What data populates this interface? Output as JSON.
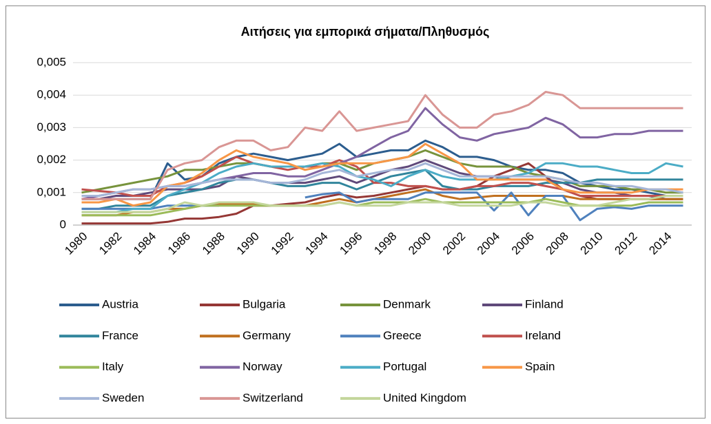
{
  "chart_data": {
    "type": "line",
    "title": "Αιτήσεις για εμπορικά σήματα/Πληθυσμός",
    "categories": [
      "1980",
      null,
      "1982",
      null,
      "1984",
      null,
      "1986",
      null,
      "1988",
      null,
      "1990",
      null,
      "1992",
      null,
      "1994",
      null,
      "1996",
      null,
      "1998",
      null,
      "2000",
      null,
      "2002",
      null,
      "2004",
      null,
      "2006",
      null,
      "2008",
      null,
      "2010",
      null,
      "2012",
      null,
      "2014",
      null
    ],
    "ylim": [
      0,
      0.005
    ],
    "yticks": [
      0,
      {
        "value": 0.001,
        "label": "0,001"
      },
      {
        "value": 0.002,
        "label": "0,002"
      },
      {
        "value": 0.003,
        "label": "0,003"
      },
      {
        "value": 0.004,
        "label": "0,004"
      },
      {
        "value": 0.005,
        "label": "0,005"
      }
    ],
    "grid": true,
    "legend": "bottom",
    "series": [
      {
        "name": "Austria",
        "color": "#2c5d8e",
        "values": [
          0.0008,
          0.0008,
          0.0008,
          0.0008,
          0.0008,
          0.0019,
          0.0014,
          0.0015,
          0.0019,
          0.0021,
          0.0022,
          0.0021,
          0.002,
          0.0021,
          0.0022,
          0.0025,
          0.0021,
          0.0022,
          0.0023,
          0.0023,
          0.0026,
          0.0024,
          0.0021,
          0.0021,
          0.002,
          0.0018,
          0.0017,
          0.0017,
          0.0016,
          0.0013,
          0.0012,
          0.0011,
          0.0011,
          0.001,
          0.0009,
          0.0009
        ]
      },
      {
        "name": "Bulgaria",
        "color": "#953735",
        "values": [
          5e-05,
          5e-05,
          5e-05,
          5e-05,
          5e-05,
          0.0001,
          0.0002,
          0.0002,
          0.00025,
          0.00035,
          0.0006,
          0.0006,
          0.00065,
          0.0007,
          0.00085,
          0.00095,
          0.00085,
          0.0009,
          0.001,
          0.0011,
          0.0012,
          0.0011,
          0.0011,
          0.0012,
          0.0015,
          0.0017,
          0.0019,
          0.0015,
          0.0011,
          0.0009,
          0.0008,
          0.0008,
          0.0008,
          0.0008,
          0.0008,
          0.0008
        ]
      },
      {
        "name": "Denmark",
        "color": "#77933c",
        "values": [
          0.001,
          0.0011,
          0.0012,
          0.0013,
          0.0014,
          0.0015,
          0.0017,
          0.0017,
          0.0018,
          0.0019,
          0.0019,
          0.0018,
          0.0018,
          0.0018,
          0.0019,
          0.0019,
          0.0017,
          0.0019,
          0.002,
          0.0021,
          0.0023,
          0.0021,
          0.0019,
          0.0018,
          0.0018,
          0.0018,
          0.0016,
          0.0015,
          0.0014,
          0.0012,
          0.0012,
          0.0012,
          0.0011,
          0.0011,
          0.001,
          0.001
        ]
      },
      {
        "name": "Finland",
        "color": "#5f497a",
        "values": [
          0.0008,
          0.0008,
          0.0009,
          0.0009,
          0.001,
          0.0011,
          0.0011,
          0.0011,
          0.0012,
          0.0015,
          0.0014,
          0.0013,
          0.0013,
          0.0013,
          0.0014,
          0.0015,
          0.0013,
          0.0015,
          0.0017,
          0.0018,
          0.002,
          0.0018,
          0.0016,
          0.0015,
          0.0015,
          0.0014,
          0.0014,
          0.0014,
          0.0013,
          0.0011,
          0.001,
          0.001,
          0.0009,
          0.0009,
          0.0008,
          0.0008
        ]
      },
      {
        "name": "France",
        "color": "#31859c",
        "values": [
          0.0005,
          0.0005,
          0.0006,
          0.0006,
          0.0006,
          0.0009,
          0.001,
          0.0011,
          0.0013,
          0.0014,
          0.0014,
          0.0013,
          0.0012,
          0.0012,
          0.0013,
          0.0013,
          0.0011,
          0.0013,
          0.0015,
          0.0016,
          0.0017,
          0.0012,
          0.0011,
          0.0011,
          0.0012,
          0.0012,
          0.0012,
          0.0013,
          0.0013,
          0.0013,
          0.0014,
          0.0014,
          0.0014,
          0.0014,
          0.0014,
          0.0014
        ]
      },
      {
        "name": "Germany",
        "color": "#c0701f",
        "values": [
          0.0003,
          0.0003,
          0.0003,
          0.0004,
          0.0004,
          0.0005,
          0.0005,
          0.0006,
          0.00065,
          0.00065,
          0.00065,
          0.0006,
          0.0006,
          0.0006,
          0.0007,
          0.0008,
          0.0007,
          0.0008,
          0.0009,
          0.001,
          0.0011,
          0.0009,
          0.0008,
          0.00085,
          0.0009,
          0.0009,
          0.0009,
          0.0009,
          0.0009,
          0.0008,
          0.0008,
          0.0008,
          0.0008,
          0.0008,
          0.0008,
          0.0008
        ]
      },
      {
        "name": "Greece",
        "color": "#4f81bd",
        "values": [
          0.0005,
          0.0005,
          0.0005,
          0.0005,
          0.0005,
          0.0006,
          0.0006,
          0.0006,
          0.0006,
          null,
          null,
          null,
          null,
          0.00085,
          0.00095,
          0.001,
          0.0007,
          0.0008,
          0.0008,
          0.0008,
          0.001,
          0.001,
          0.001,
          0.001,
          0.00045,
          0.001,
          0.0003,
          0.0009,
          0.0009,
          0.00015,
          0.0005,
          0.00055,
          0.0005,
          0.0006,
          0.0006,
          0.0006
        ]
      },
      {
        "name": "Ireland",
        "color": "#c0504d",
        "values": [
          0.0011,
          0.00105,
          0.001,
          0.0009,
          0.0009,
          0.0012,
          0.0013,
          0.0015,
          0.0018,
          0.0021,
          0.0019,
          0.0018,
          0.0017,
          0.0018,
          0.0018,
          0.002,
          0.0018,
          0.0013,
          0.0013,
          0.0012,
          0.0012,
          0.0011,
          0.0011,
          0.0012,
          0.0012,
          0.0013,
          0.0013,
          0.0012,
          0.0011,
          0.0009,
          0.0009,
          0.0009,
          0.0009,
          0.0009,
          0.0009,
          0.0009
        ]
      },
      {
        "name": "Italy",
        "color": "#9bbb59",
        "values": [
          0.0003,
          0.0003,
          0.0003,
          0.0003,
          0.0003,
          0.0004,
          0.0005,
          0.0006,
          0.0006,
          0.0006,
          0.0006,
          0.0006,
          0.0006,
          0.0006,
          0.0006,
          0.0007,
          0.0006,
          0.0007,
          0.0007,
          0.0007,
          0.0008,
          0.0007,
          0.0007,
          0.0007,
          0.0007,
          0.0007,
          0.0007,
          0.0008,
          0.0007,
          0.0006,
          0.0006,
          0.0006,
          0.0006,
          0.0007,
          0.0007,
          0.0007
        ]
      },
      {
        "name": "Norway",
        "color": "#8064a2",
        "values": [
          0.0008,
          0.0009,
          0.001,
          0.0011,
          0.0011,
          0.0012,
          0.0012,
          0.0013,
          0.0014,
          0.0015,
          0.0016,
          0.0016,
          0.0015,
          0.0015,
          0.0017,
          0.0019,
          0.0021,
          0.0024,
          0.0027,
          0.0029,
          0.0036,
          0.0031,
          0.0027,
          0.0026,
          0.0028,
          0.0029,
          0.003,
          0.0033,
          0.0031,
          0.0027,
          0.0027,
          0.0028,
          0.0028,
          0.0029,
          0.0029,
          0.0029
        ]
      },
      {
        "name": "Portugal",
        "color": "#4bacc6",
        "values": [
          0.0004,
          0.0004,
          0.0004,
          0.0005,
          0.0005,
          0.0009,
          0.0011,
          0.0013,
          0.0016,
          0.0018,
          0.0019,
          0.0018,
          0.0018,
          0.0018,
          0.0019,
          0.0018,
          0.0015,
          0.0014,
          0.0012,
          0.0015,
          0.0017,
          0.0015,
          0.0014,
          0.0014,
          0.0014,
          0.0015,
          0.0016,
          0.0019,
          0.0019,
          0.0018,
          0.0018,
          0.0017,
          0.0016,
          0.0016,
          0.0019,
          0.0018
        ]
      },
      {
        "name": "Spain",
        "color": "#f79646",
        "values": [
          0.0007,
          0.0007,
          0.0008,
          0.0006,
          0.0007,
          0.0012,
          0.0013,
          0.0016,
          0.002,
          0.0023,
          0.0021,
          0.002,
          0.0019,
          0.0017,
          0.0018,
          0.0019,
          0.0019,
          0.0019,
          0.002,
          0.0021,
          0.0025,
          0.0022,
          0.0019,
          0.0014,
          0.0014,
          0.0014,
          0.0014,
          0.0014,
          0.0011,
          0.001,
          0.001,
          0.001,
          0.001,
          0.0011,
          0.0011,
          0.0011
        ]
      },
      {
        "name": "Sweden",
        "color": "#a5b6d8",
        "values": [
          0.0009,
          0.0009,
          0.001,
          0.0011,
          0.0011,
          0.0012,
          0.0012,
          0.0013,
          0.0014,
          0.0014,
          0.0014,
          0.0013,
          0.0013,
          0.0014,
          0.0016,
          0.0017,
          0.0015,
          0.0016,
          0.0017,
          0.0017,
          0.0019,
          0.0017,
          0.0015,
          0.0015,
          0.0015,
          0.0015,
          0.0015,
          0.0015,
          0.0014,
          0.0013,
          0.0013,
          0.0012,
          0.0012,
          0.0011,
          0.0011,
          0.001
        ]
      },
      {
        "name": "Switzerland",
        "color": "#d99694",
        "values": [
          0.0008,
          0.0008,
          0.0008,
          0.0008,
          0.0008,
          0.0017,
          0.0019,
          0.002,
          0.0024,
          0.0026,
          0.0026,
          0.0023,
          0.0024,
          0.003,
          0.0029,
          0.0035,
          0.0029,
          0.003,
          0.0031,
          0.0032,
          0.004,
          0.0034,
          0.003,
          0.003,
          0.0034,
          0.0035,
          0.0037,
          0.0041,
          0.004,
          0.0036,
          0.0036,
          0.0036,
          0.0036,
          0.0036,
          0.0036,
          0.0036
        ]
      },
      {
        "name": "United Kingdom",
        "color": "#c3d69b",
        "values": [
          0.0004,
          0.0004,
          0.0004,
          0.0004,
          0.0004,
          0.0005,
          0.0007,
          0.0006,
          0.0007,
          0.0007,
          0.0007,
          0.0006,
          0.0006,
          0.0006,
          0.0006,
          0.0007,
          0.0006,
          0.0006,
          0.0006,
          0.0007,
          0.0007,
          0.0007,
          0.0006,
          0.0006,
          0.0006,
          0.0006,
          0.0007,
          0.0007,
          0.0006,
          0.0006,
          0.0006,
          0.0007,
          0.0008,
          0.0008,
          0.0009,
          0.0009
        ]
      }
    ]
  }
}
